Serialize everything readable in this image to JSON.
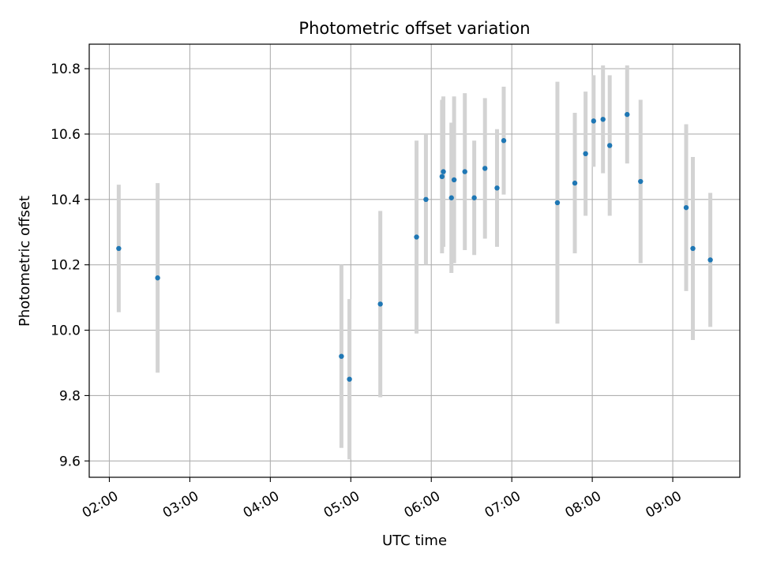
{
  "chart_data": {
    "type": "scatter",
    "title": "Photometric offset variation",
    "xlabel": "UTC time",
    "ylabel": "Photometric offset",
    "x_format": "HH:MM",
    "xlim": [
      "01:45",
      "09:50"
    ],
    "ylim": [
      9.55,
      10.875
    ],
    "x_ticks": [
      "02:00",
      "03:00",
      "04:00",
      "05:00",
      "06:00",
      "07:00",
      "08:00",
      "09:00"
    ],
    "y_ticks": [
      9.6,
      9.8,
      10.0,
      10.2,
      10.4,
      10.6,
      10.8
    ],
    "y_tick_labels": [
      "9.6",
      "9.8",
      "10.0",
      "10.2",
      "10.4",
      "10.6",
      "10.8"
    ],
    "grid": true,
    "colors": {
      "marker": "#1f77b4",
      "errorbar": "#d3d3d3",
      "grid": "#b0b0b0"
    },
    "points": [
      {
        "t": "02:07",
        "y": 10.25,
        "err": 0.195
      },
      {
        "t": "02:36",
        "y": 10.16,
        "err": 0.29
      },
      {
        "t": "04:53",
        "y": 9.92,
        "err": 0.28
      },
      {
        "t": "04:59",
        "y": 9.85,
        "err": 0.245
      },
      {
        "t": "05:22",
        "y": 10.08,
        "err": 0.285
      },
      {
        "t": "05:49",
        "y": 10.285,
        "err": 0.295
      },
      {
        "t": "05:56",
        "y": 10.4,
        "err": 0.2
      },
      {
        "t": "06:08",
        "y": 10.47,
        "err": 0.235
      },
      {
        "t": "06:09",
        "y": 10.485,
        "err": 0.23
      },
      {
        "t": "06:15",
        "y": 10.405,
        "err": 0.23
      },
      {
        "t": "06:17",
        "y": 10.46,
        "err": 0.255
      },
      {
        "t": "06:25",
        "y": 10.485,
        "err": 0.24
      },
      {
        "t": "06:32",
        "y": 10.405,
        "err": 0.175
      },
      {
        "t": "06:40",
        "y": 10.495,
        "err": 0.215
      },
      {
        "t": "06:49",
        "y": 10.435,
        "err": 0.18
      },
      {
        "t": "06:54",
        "y": 10.58,
        "err": 0.165
      },
      {
        "t": "07:34",
        "y": 10.39,
        "err": 0.37
      },
      {
        "t": "07:47",
        "y": 10.45,
        "err": 0.215
      },
      {
        "t": "07:55",
        "y": 10.54,
        "err": 0.19
      },
      {
        "t": "08:01",
        "y": 10.64,
        "err": 0.14
      },
      {
        "t": "08:08",
        "y": 10.645,
        "err": 0.165
      },
      {
        "t": "08:13",
        "y": 10.565,
        "err": 0.215
      },
      {
        "t": "08:26",
        "y": 10.66,
        "err": 0.15
      },
      {
        "t": "08:36",
        "y": 10.455,
        "err": 0.25
      },
      {
        "t": "09:10",
        "y": 10.375,
        "err": 0.255
      },
      {
        "t": "09:15",
        "y": 10.25,
        "err": 0.28
      },
      {
        "t": "09:28",
        "y": 10.215,
        "err": 0.205
      }
    ]
  }
}
